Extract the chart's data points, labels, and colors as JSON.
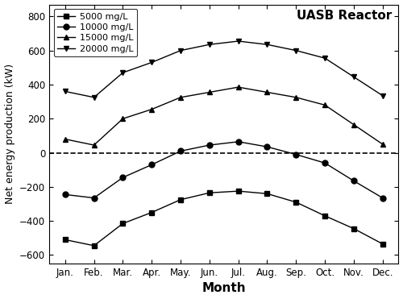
{
  "months": [
    "Jan.",
    "Feb.",
    "Mar.",
    "Apr.",
    "May.",
    "Jun.",
    "Jul.",
    "Aug.",
    "Sep.",
    "Oct.",
    "Nov.",
    "Dec."
  ],
  "series": {
    "5000 mg/L": [
      -510,
      -545,
      -415,
      -350,
      -275,
      -235,
      -225,
      -240,
      -290,
      -370,
      -445,
      -535
    ],
    "10000 mg/L": [
      -245,
      -265,
      -145,
      -70,
      10,
      45,
      65,
      35,
      -10,
      -60,
      -165,
      -265
    ],
    "15000 mg/L": [
      80,
      45,
      200,
      255,
      325,
      355,
      385,
      355,
      325,
      280,
      165,
      50
    ],
    "20000 mg/L": [
      360,
      325,
      470,
      530,
      600,
      635,
      655,
      635,
      600,
      555,
      445,
      335
    ]
  },
  "markers": {
    "5000 mg/L": "s",
    "10000 mg/L": "o",
    "15000 mg/L": "^",
    "20000 mg/L": "v"
  },
  "line_color": "#000000",
  "ylabel": "Net energy production (kW)",
  "xlabel": "Month",
  "ylim": [
    -650,
    870
  ],
  "yticks": [
    -600,
    -400,
    -200,
    0,
    200,
    400,
    600,
    800
  ],
  "title": "UASB Reactor",
  "dashed_line_y": 0,
  "background_color": "#ffffff",
  "markersize": 5,
  "linewidth": 1.0,
  "legend_fontsize": 8,
  "ylabel_fontsize": 9,
  "xlabel_fontsize": 11,
  "tick_labelsize": 8.5
}
